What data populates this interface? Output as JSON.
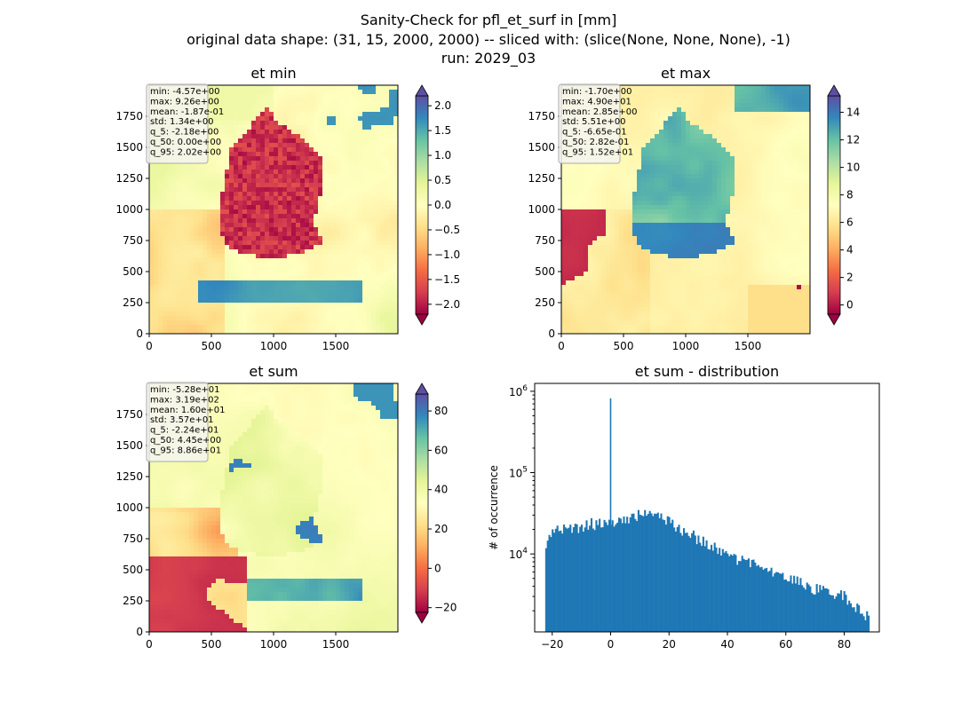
{
  "suptitle": {
    "line1": "Sanity-Check for pfl_et_surf in [mm]",
    "line2": "original data shape: (31, 15, 2000, 2000) -- sliced with: (slice(None, None, None), -1)",
    "line3": "run: 2029_03"
  },
  "colors": {
    "spectral": [
      "#9e0142",
      "#d53e4f",
      "#f46d43",
      "#fdae61",
      "#fee08b",
      "#ffffbf",
      "#e6f598",
      "#abdda4",
      "#66c2a5",
      "#3288bd",
      "#5e4fa2"
    ],
    "hist_bar": "#1f77b4",
    "stats_box_fill": "#f5f5f0",
    "stats_box_edge": "#aaaaaa"
  },
  "chart_data": [
    {
      "type": "heatmap",
      "title": "et min",
      "xlim": [
        0,
        2000
      ],
      "ylim": [
        0,
        2000
      ],
      "xticks": [
        0,
        500,
        1000,
        1500
      ],
      "yticks": [
        0,
        250,
        500,
        750,
        1000,
        1250,
        1500,
        1750
      ],
      "colormap": "Spectral",
      "colorbar": {
        "range": [
          -2.2,
          2.2
        ],
        "ticks": [
          "2.0",
          "1.5",
          "1.0",
          "0.5",
          "0.0",
          "−0.5",
          "−1.0",
          "−1.5",
          "−2.0"
        ],
        "tick_values": [
          2.0,
          1.5,
          1.0,
          0.5,
          0.0,
          -0.5,
          -1.0,
          -1.5,
          -2.0
        ],
        "extend": "both"
      },
      "stats": [
        "min: -4.57e+00",
        "max: 9.26e+00",
        "mean: -1.87e-01",
        "std: 1.34e+00",
        "q_5: -2.18e+00",
        "q_50: 0.00e+00",
        "q_95: 2.02e+00"
      ]
    },
    {
      "type": "heatmap",
      "title": "et max",
      "xlim": [
        0,
        2000
      ],
      "ylim": [
        0,
        2000
      ],
      "xticks": [
        0,
        500,
        1000,
        1500
      ],
      "yticks": [
        0,
        250,
        500,
        750,
        1000,
        1250,
        1500,
        1750
      ],
      "colormap": "Spectral",
      "colorbar": {
        "range": [
          -0.67,
          15.2
        ],
        "ticks": [
          "14",
          "12",
          "10",
          "8",
          "6",
          "4",
          "2",
          "0"
        ],
        "tick_values": [
          14,
          12,
          10,
          8,
          6,
          4,
          2,
          0
        ],
        "extend": "both"
      },
      "stats": [
        "min: -1.70e+00",
        "max: 4.90e+01",
        "mean: 2.85e+00",
        "std: 5.51e+00",
        "q_5: -6.65e-01",
        "q_50: 2.82e-01",
        "q_95: 1.52e+01"
      ]
    },
    {
      "type": "heatmap",
      "title": "et sum",
      "xlim": [
        0,
        2000
      ],
      "ylim": [
        0,
        2000
      ],
      "xticks": [
        0,
        500,
        1000,
        1500
      ],
      "yticks": [
        0,
        250,
        500,
        750,
        1000,
        1250,
        1500,
        1750
      ],
      "colormap": "Spectral",
      "colorbar": {
        "range": [
          -22.4,
          88.6
        ],
        "ticks": [
          "80",
          "60",
          "40",
          "20",
          "0",
          "−20"
        ],
        "tick_values": [
          80,
          60,
          40,
          20,
          0,
          -20
        ],
        "extend": "both"
      },
      "stats": [
        "min: -5.28e+01",
        "max: 3.19e+02",
        "mean: 1.60e+01",
        "std: 3.57e+01",
        "q_5: -2.24e+01",
        "q_50: 4.45e+00",
        "q_95: 8.86e+01"
      ]
    },
    {
      "type": "bar",
      "title": "et sum - distribution",
      "xlabel": "",
      "ylabel": "# of occurrence",
      "yscale": "log",
      "xlim": [
        -26,
        92
      ],
      "ylim": [
        1100,
        1250000
      ],
      "xticks": [
        "−20",
        "0",
        "20",
        "40",
        "60",
        "80"
      ],
      "xtick_values": [
        -20,
        0,
        20,
        40,
        60,
        80
      ],
      "yticks": [
        "10^4",
        "10^5",
        "10^6"
      ],
      "ytick_values": [
        10000,
        100000,
        1000000
      ],
      "bin_range": [
        -22.4,
        88.6
      ],
      "spike": {
        "x": 0,
        "count": 820000
      },
      "profile": [
        [
          -22.4,
          13000
        ],
        [
          -20,
          18000
        ],
        [
          -15,
          21000
        ],
        [
          -10,
          22000
        ],
        [
          -5,
          24000
        ],
        [
          -1,
          25000
        ],
        [
          2,
          26000
        ],
        [
          8,
          28000
        ],
        [
          12,
          32000
        ],
        [
          16,
          30000
        ],
        [
          22,
          22000
        ],
        [
          30,
          15500
        ],
        [
          40,
          10000
        ],
        [
          50,
          7000
        ],
        [
          60,
          5000
        ],
        [
          70,
          3800
        ],
        [
          80,
          3000
        ],
        [
          88.6,
          1700
        ]
      ]
    }
  ]
}
